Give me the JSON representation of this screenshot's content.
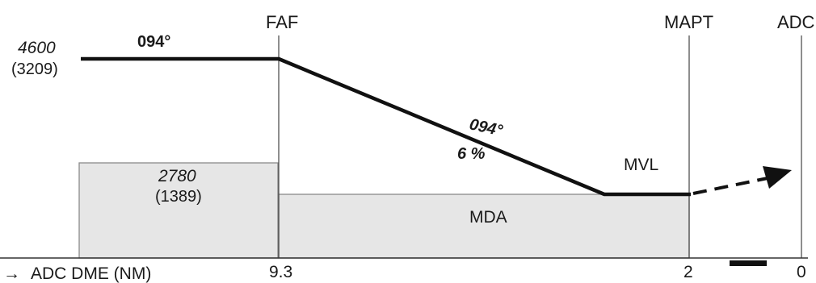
{
  "fixes": {
    "faf": "FAF",
    "mapt": "MAPT",
    "adc": "ADC"
  },
  "initial_segment": {
    "altitude": "4600",
    "height": "(3209)",
    "course": "094°"
  },
  "descent_segment": {
    "course": "094°",
    "gradient": "6 %"
  },
  "step_box": {
    "altitude": "2780",
    "height": "(1389)"
  },
  "labels": {
    "mvl": "MVL",
    "mda": "MDA"
  },
  "dme_axis": {
    "title": "ADC DME (NM)",
    "arrow": "→",
    "ticks": [
      "9.3",
      "2",
      "0"
    ]
  }
}
